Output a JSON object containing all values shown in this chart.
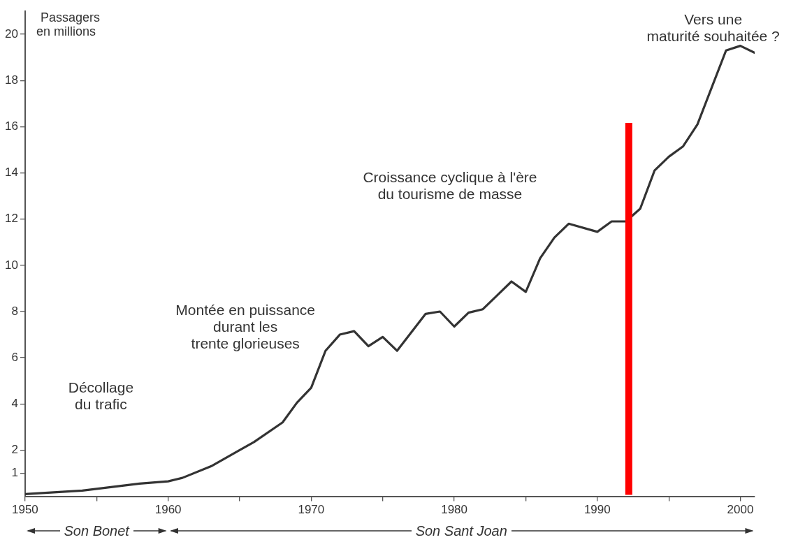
{
  "chart_data": {
    "type": "line",
    "ylabel": "Passagers\nen millions",
    "x": [
      1950,
      1954,
      1956,
      1958,
      1960,
      1961,
      1963,
      1965,
      1966,
      1968,
      1969,
      1970,
      1971,
      1972,
      1973,
      1974,
      1975,
      1976,
      1978,
      1979,
      1980,
      1981,
      1982,
      1983,
      1984,
      1985,
      1986,
      1987,
      1988,
      1990,
      1991,
      1992,
      1993,
      1994,
      1995,
      1996,
      1997,
      1998,
      1999,
      2000,
      2001
    ],
    "series": [
      {
        "color": "#333333",
        "values": [
          0.1,
          0.25,
          0.4,
          0.55,
          0.65,
          0.8,
          1.3,
          2.0,
          2.35,
          3.2,
          4.05,
          4.7,
          6.3,
          7.0,
          7.15,
          6.5,
          6.9,
          6.3,
          7.9,
          8.0,
          7.35,
          7.95,
          8.1,
          8.7,
          9.3,
          8.85,
          10.3,
          11.2,
          11.8,
          11.45,
          11.9,
          11.9,
          12.45,
          14.1,
          14.7,
          15.15,
          16.1,
          17.7,
          19.3,
          19.5,
          19.2
        ]
      }
    ],
    "xlim": [
      1950,
      2001
    ],
    "xticks": [
      1950,
      {
        "value": 1955,
        "label": null
      },
      1960,
      {
        "value": 1965,
        "label": null
      },
      1970,
      {
        "value": 1975,
        "label": null
      },
      1980,
      {
        "value": 1985,
        "label": null
      },
      1990,
      {
        "value": 1995,
        "label": null
      },
      2000
    ],
    "ylim": [
      0,
      21
    ],
    "yticks": [
      1,
      2,
      4,
      6,
      8,
      10,
      12,
      14,
      16,
      18,
      20
    ],
    "grid": false,
    "legend": false,
    "marker": "none",
    "line_style": "solid",
    "ref_lines": [
      {
        "axis": "x",
        "value": 1992.2,
        "color": "#ff0000"
      }
    ],
    "annotations": [
      "Décollage\ndu trafic",
      "Montée en puissance\ndurant les\ntrente glorieuses",
      "Croissance cyclique à l'ère\ndu tourisme de masse",
      "Vers une\nmaturité souhaitée ?",
      "Son Bonet",
      "Son Sant Joan"
    ]
  }
}
